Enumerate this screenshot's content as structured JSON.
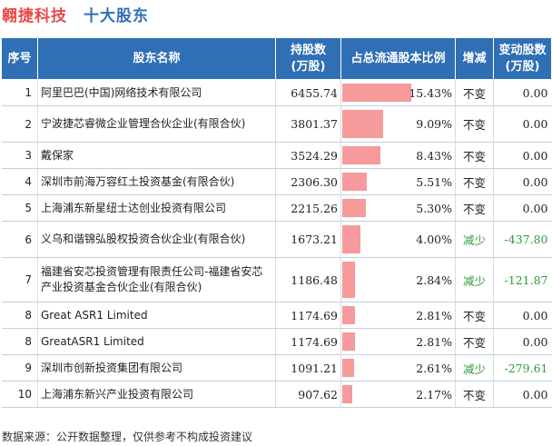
{
  "title": {
    "company": "翱捷科技",
    "section": "十大股东"
  },
  "table": {
    "headers": {
      "index": "序号",
      "name": "股东名称",
      "shares": "持股数\n(万股)",
      "pct": "占总流通股本比例",
      "change": "增减",
      "change_amount": "变动股数\n(万股)"
    },
    "rows": [
      {
        "index": "1",
        "name": "阿里巴巴(中国)网络技术有限公司",
        "shares": "6455.74",
        "pct": "15.43%",
        "pct_value": 15.43,
        "change": "不变",
        "change_type": "same",
        "change_amount": "0.00"
      },
      {
        "index": "2",
        "name": "宁波捷芯睿微企业管理合伙企业(有限合伙)",
        "shares": "3801.37",
        "pct": "9.09%",
        "pct_value": 9.09,
        "change": "不变",
        "change_type": "same",
        "change_amount": "0.00"
      },
      {
        "index": "3",
        "name": "戴保家",
        "shares": "3524.29",
        "pct": "8.43%",
        "pct_value": 8.43,
        "change": "不变",
        "change_type": "same",
        "change_amount": "0.00"
      },
      {
        "index": "4",
        "name": "深圳市前海万容红土投资基金(有限合伙)",
        "shares": "2306.30",
        "pct": "5.51%",
        "pct_value": 5.51,
        "change": "不变",
        "change_type": "same",
        "change_amount": "0.00"
      },
      {
        "index": "5",
        "name": "上海浦东新星纽士达创业投资有限公司",
        "shares": "2215.26",
        "pct": "5.30%",
        "pct_value": 5.3,
        "change": "不变",
        "change_type": "same",
        "change_amount": "0.00"
      },
      {
        "index": "6",
        "name": "义乌和谐锦弘股权投资合伙企业(有限合伙)",
        "shares": "1673.21",
        "pct": "4.00%",
        "pct_value": 4.0,
        "change": "减少",
        "change_type": "down",
        "change_amount": "-437.80"
      },
      {
        "index": "7",
        "name": "福建省安芯投资管理有限责任公司-福建省安芯产业投资基金合伙企业(有限合伙)",
        "shares": "1186.48",
        "pct": "2.84%",
        "pct_value": 2.84,
        "change": "减少",
        "change_type": "down",
        "change_amount": "-121.87"
      },
      {
        "index": "8",
        "name": "Great ASR1 Limited",
        "shares": "1174.69",
        "pct": "2.81%",
        "pct_value": 2.81,
        "change": "不变",
        "change_type": "same",
        "change_amount": "0.00"
      },
      {
        "index": "8",
        "name": "GreatASR1 Limited",
        "shares": "1174.69",
        "pct": "2.81%",
        "pct_value": 2.81,
        "change": "不变",
        "change_type": "same",
        "change_amount": "0.00"
      },
      {
        "index": "9",
        "name": "深圳市创新投资集团有限公司",
        "shares": "1091.21",
        "pct": "2.61%",
        "pct_value": 2.61,
        "change": "减少",
        "change_type": "down",
        "change_amount": "-279.61"
      },
      {
        "index": "10",
        "name": "上海浦东新兴产业投资有限公司",
        "shares": "907.62",
        "pct": "2.17%",
        "pct_value": 2.17,
        "change": "不变",
        "change_type": "same",
        "change_amount": "0.00"
      }
    ]
  },
  "footer": "数据来源：公开数据整理，仅供参考不构成投资建议",
  "colors": {
    "company": "#e8484a",
    "section": "#2f6fb5",
    "header_bg": "#2f6fb5",
    "bar": "#f69a9b",
    "down": "#2e9c3a"
  }
}
